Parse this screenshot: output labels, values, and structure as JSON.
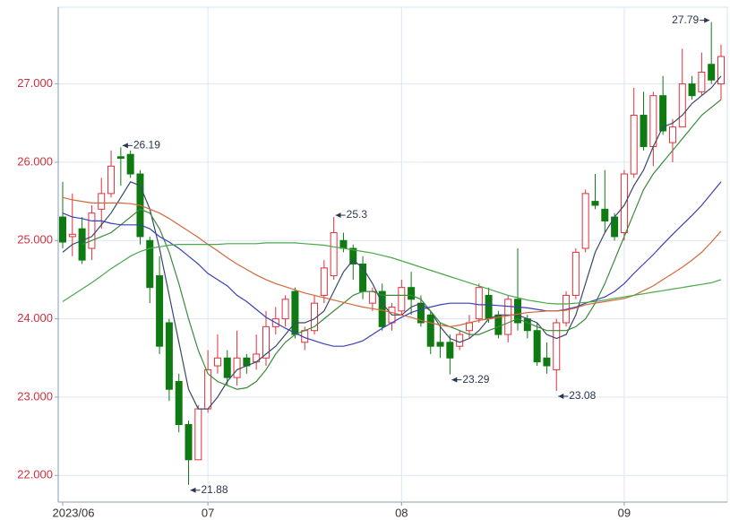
{
  "chart_data": {
    "type": "candlestick",
    "categories": [
      "2023/06",
      null,
      null,
      null,
      null,
      null,
      null,
      null,
      null,
      null,
      null,
      null,
      null,
      null,
      null,
      "07",
      null,
      null,
      null,
      null,
      null,
      null,
      null,
      null,
      null,
      null,
      null,
      null,
      null,
      null,
      null,
      null,
      null,
      null,
      null,
      "08",
      null,
      null,
      null,
      null,
      null,
      null,
      null,
      null,
      null,
      null,
      null,
      null,
      null,
      null,
      null,
      null,
      null,
      null,
      null,
      null,
      null,
      null,
      "09",
      null,
      null,
      null,
      null,
      null,
      null,
      null,
      null,
      null,
      null
    ],
    "open": [
      25.3,
      25.05,
      25.15,
      24.9,
      25.4,
      25.6,
      26.07,
      26.1,
      25.85,
      25.0,
      24.55,
      23.95,
      23.2,
      22.65,
      22.2,
      22.85,
      23.4,
      23.5,
      23.25,
      23.5,
      23.45,
      23.5,
      23.9,
      24.0,
      24.35,
      23.7,
      23.85,
      24.3,
      24.55,
      25.0,
      24.9,
      24.7,
      24.2,
      24.35,
      23.95,
      24.1,
      24.4,
      24.2,
      24.05,
      23.7,
      23.7,
      23.65,
      23.85,
      24.0,
      24.3,
      24.05,
      23.8,
      24.25,
      24.0,
      23.85,
      23.5,
      23.35,
      23.95,
      24.3,
      24.9,
      25.5,
      25.4,
      25.3,
      25.1,
      25.85,
      26.6,
      26.2,
      26.85,
      26.25,
      26.45,
      27.0,
      26.9,
      27.25,
      27.0
    ],
    "close": [
      24.98,
      25.08,
      24.75,
      25.35,
      25.6,
      25.95,
      26.05,
      25.85,
      25.05,
      24.4,
      23.65,
      23.1,
      22.65,
      22.2,
      22.85,
      23.35,
      23.5,
      23.25,
      23.5,
      23.4,
      23.55,
      23.9,
      24.0,
      24.25,
      23.8,
      23.85,
      24.2,
      24.65,
      25.1,
      24.9,
      24.7,
      24.35,
      24.35,
      23.9,
      24.15,
      24.4,
      24.25,
      23.95,
      23.65,
      23.65,
      23.5,
      23.8,
      23.95,
      24.4,
      24.0,
      23.8,
      24.25,
      23.95,
      23.85,
      23.45,
      23.4,
      23.95,
      24.3,
      24.85,
      25.6,
      25.45,
      25.25,
      25.05,
      25.85,
      26.6,
      26.2,
      26.85,
      26.4,
      26.45,
      27.0,
      26.85,
      27.15,
      27.05,
      27.35
    ],
    "high": [
      25.75,
      25.6,
      25.3,
      25.45,
      25.8,
      26.15,
      26.19,
      26.15,
      25.9,
      25.05,
      24.8,
      24.0,
      23.3,
      22.7,
      22.9,
      23.6,
      23.8,
      23.6,
      23.85,
      23.55,
      23.8,
      24.1,
      24.15,
      24.3,
      24.4,
      23.9,
      24.3,
      24.75,
      25.3,
      25.1,
      24.95,
      24.8,
      24.4,
      24.45,
      24.2,
      24.5,
      24.6,
      24.3,
      24.1,
      23.95,
      23.8,
      23.85,
      24.05,
      24.45,
      24.4,
      24.1,
      24.3,
      24.9,
      24.05,
      23.95,
      23.7,
      24.0,
      24.35,
      24.9,
      25.65,
      25.85,
      25.9,
      25.35,
      25.9,
      26.95,
      26.9,
      26.9,
      27.1,
      26.55,
      27.45,
      27.1,
      27.4,
      27.79,
      27.5
    ],
    "low": [
      24.9,
      24.8,
      24.7,
      24.75,
      25.15,
      25.55,
      25.7,
      25.8,
      24.95,
      24.2,
      23.55,
      22.95,
      22.55,
      21.88,
      22.2,
      22.8,
      23.3,
      23.15,
      23.15,
      23.3,
      23.35,
      23.4,
      23.8,
      23.9,
      23.75,
      23.6,
      23.8,
      24.2,
      24.5,
      24.85,
      24.5,
      24.25,
      24.1,
      23.85,
      23.85,
      24.05,
      24.05,
      23.9,
      23.55,
      23.5,
      23.29,
      23.6,
      23.75,
      23.95,
      23.95,
      23.75,
      23.7,
      23.85,
      23.75,
      23.4,
      23.3,
      23.08,
      23.9,
      24.25,
      24.85,
      25.4,
      25.1,
      25.0,
      25.0,
      25.8,
      26.15,
      25.95,
      26.35,
      26.0,
      26.45,
      26.8,
      26.85,
      27.0,
      26.8
    ],
    "up_color": "#e0303c",
    "down_color": "#0f7a12",
    "lines": [
      {
        "color": "#3a4868",
        "values": [
          24.85,
          24.95,
          25.0,
          25.05,
          25.2,
          25.35,
          25.55,
          25.75,
          25.7,
          25.4,
          24.9,
          24.3,
          23.7,
          23.1,
          22.85,
          22.85,
          23.0,
          23.2,
          23.35,
          23.4,
          23.45,
          23.55,
          23.65,
          23.8,
          23.95,
          23.95,
          24.0,
          24.1,
          24.35,
          24.6,
          24.75,
          24.65,
          24.45,
          24.2,
          24.05,
          24.05,
          24.15,
          24.2,
          24.1,
          23.9,
          23.75,
          23.7,
          23.75,
          23.85,
          24.0,
          24.05,
          24.05,
          24.05,
          24.0,
          23.95,
          23.8,
          23.75,
          23.8,
          24.05,
          24.45,
          24.85,
          25.1,
          25.3,
          25.45,
          25.7,
          25.9,
          26.2,
          26.45,
          26.5,
          26.6,
          26.75,
          26.85,
          26.95,
          27.1
        ]
      },
      {
        "color": "#3a8a3a",
        "values": [
          null,
          null,
          24.95,
          25.0,
          25.05,
          25.1,
          25.2,
          25.3,
          25.4,
          25.35,
          25.15,
          24.85,
          24.45,
          24.0,
          23.6,
          23.3,
          23.2,
          23.15,
          23.1,
          23.12,
          23.2,
          23.35,
          23.55,
          23.7,
          23.8,
          23.85,
          23.9,
          24.0,
          24.1,
          24.2,
          24.3,
          24.35,
          24.35,
          24.3,
          24.3,
          24.3,
          24.3,
          24.25,
          24.1,
          23.95,
          23.9,
          23.85,
          23.8,
          23.8,
          23.85,
          23.9,
          23.95,
          24.0,
          23.95,
          23.9,
          23.85,
          23.85,
          23.85,
          23.9,
          24.0,
          24.2,
          24.45,
          24.75,
          25.05,
          25.35,
          25.65,
          25.85,
          26.0,
          26.15,
          26.3,
          26.45,
          26.6,
          26.7,
          26.8
        ]
      },
      {
        "color": "#3a3fb5",
        "values": [
          25.35,
          25.3,
          25.28,
          25.25,
          25.25,
          25.22,
          25.2,
          25.2,
          25.2,
          25.15,
          25.05,
          24.98,
          24.9,
          24.8,
          24.7,
          24.58,
          24.5,
          24.42,
          24.3,
          24.22,
          24.12,
          24.02,
          23.95,
          23.88,
          23.82,
          23.76,
          23.72,
          23.68,
          23.65,
          23.65,
          23.68,
          23.72,
          23.8,
          23.88,
          23.95,
          24.02,
          24.08,
          24.12,
          24.15,
          24.18,
          24.2,
          24.2,
          24.2,
          24.18,
          24.18,
          24.17,
          24.16,
          24.15,
          24.14,
          24.12,
          24.1,
          24.1,
          24.12,
          24.15,
          24.2,
          24.24,
          24.28,
          24.35,
          24.45,
          24.58,
          24.7,
          24.82,
          24.95,
          25.08,
          25.2,
          25.32,
          25.45,
          25.6,
          25.75
        ]
      },
      {
        "color": "#d2693a",
        "values": [
          25.55,
          25.52,
          25.5,
          25.48,
          25.48,
          25.48,
          25.48,
          25.47,
          25.45,
          25.4,
          25.35,
          25.28,
          25.2,
          25.12,
          25.04,
          24.95,
          24.87,
          24.78,
          24.7,
          24.63,
          24.56,
          24.5,
          24.45,
          24.41,
          24.37,
          24.33,
          24.3,
          24.27,
          24.24,
          24.21,
          24.18,
          24.15,
          24.13,
          24.11,
          24.08,
          24.05,
          24.02,
          23.98,
          23.95,
          23.92,
          23.9,
          23.92,
          23.95,
          23.98,
          24.0,
          24.02,
          24.04,
          24.06,
          24.08,
          24.09,
          24.1,
          24.1,
          24.11,
          24.14,
          24.18,
          24.2,
          24.22,
          24.24,
          24.26,
          24.3,
          24.36,
          24.42,
          24.5,
          24.58,
          24.66,
          24.75,
          24.85,
          24.98,
          25.12
        ]
      },
      {
        "color": "#4aa84a",
        "values": [
          24.22,
          24.3,
          24.38,
          24.46,
          24.55,
          24.64,
          24.72,
          24.8,
          24.86,
          24.9,
          24.92,
          24.94,
          24.95,
          24.95,
          24.95,
          24.95,
          24.95,
          24.96,
          24.96,
          24.96,
          24.96,
          24.97,
          24.97,
          24.97,
          24.97,
          24.96,
          24.95,
          24.94,
          24.92,
          24.9,
          24.88,
          24.86,
          24.84,
          24.81,
          24.78,
          24.74,
          24.7,
          24.66,
          24.62,
          24.58,
          24.54,
          24.5,
          24.46,
          24.42,
          24.38,
          24.34,
          24.3,
          24.27,
          24.24,
          24.22,
          24.2,
          24.19,
          24.19,
          24.2,
          24.21,
          24.22,
          24.24,
          24.26,
          24.28,
          24.3,
          24.32,
          24.34,
          24.36,
          24.38,
          24.4,
          24.42,
          24.44,
          24.46,
          24.5
        ]
      }
    ],
    "ylim": [
      21.66,
      27.98
    ],
    "yticks": [
      {
        "value": 22,
        "label": "22.000"
      },
      {
        "value": 23,
        "label": "23.000"
      },
      {
        "value": 24,
        "label": "24.000"
      },
      {
        "value": 25,
        "label": "25.000"
      },
      {
        "value": 26,
        "label": "26.000"
      },
      {
        "value": 27,
        "label": "27.000"
      }
    ],
    "grid": true
  }
}
